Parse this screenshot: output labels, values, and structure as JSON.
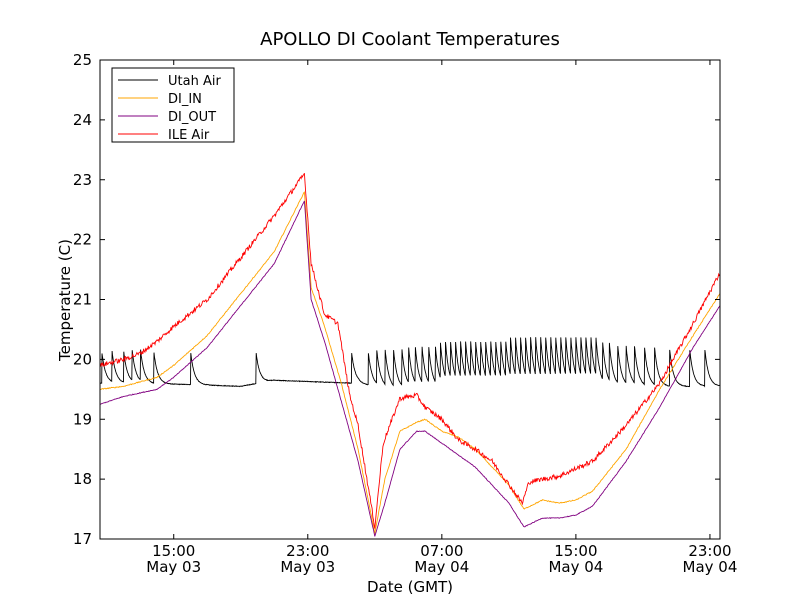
{
  "chart_data": {
    "type": "line",
    "title": "APOLLO DI Coolant Temperatures",
    "xlabel": "Date (GMT)",
    "ylabel": "Temperature (C)",
    "x_unit": "hours since May 03 00:00 GMT",
    "xlim": [
      10.6,
      47.6
    ],
    "ylim": [
      17,
      25
    ],
    "yticks": [
      17,
      18,
      19,
      20,
      21,
      22,
      23,
      24,
      25
    ],
    "xticks": [
      {
        "x": 15,
        "line1": "15:00",
        "line2": "May 03"
      },
      {
        "x": 23,
        "line1": "23:00",
        "line2": "May 03"
      },
      {
        "x": 31,
        "line1": "07:00",
        "line2": "May 04"
      },
      {
        "x": 39,
        "line1": "15:00",
        "line2": "May 04"
      },
      {
        "x": 47,
        "line1": "23:00",
        "line2": "May 04"
      }
    ],
    "legend_position": "top-left",
    "series": [
      {
        "name": "Utah Air",
        "color": "#000000",
        "baseline": [
          [
            10.6,
            19.6
          ],
          [
            12,
            19.6
          ],
          [
            16,
            19.58
          ],
          [
            19,
            19.55
          ],
          [
            21,
            19.65
          ],
          [
            24,
            19.62
          ],
          [
            26,
            19.6
          ],
          [
            28,
            19.5
          ],
          [
            47.6,
            19.55
          ]
        ],
        "spikes": [
          10.7,
          11.3,
          12.0,
          12.5,
          13.0,
          13.8,
          16.0,
          19.9,
          25.6,
          26.6,
          27.1,
          27.6,
          28.1,
          28.6,
          29.0,
          29.4,
          29.8,
          30.2,
          30.6,
          30.9,
          31.2,
          31.5,
          31.8,
          32.1,
          32.4,
          32.7,
          33.0,
          33.3,
          33.6,
          33.9,
          34.2,
          34.5,
          34.8,
          35.1,
          35.4,
          35.7,
          36.0,
          36.3,
          36.6,
          36.9,
          37.2,
          37.5,
          37.8,
          38.1,
          38.4,
          38.7,
          39.0,
          39.3,
          39.6,
          39.9,
          40.2,
          40.6,
          41.0,
          41.5,
          42.0,
          42.5,
          43.1,
          43.7,
          44.6,
          45.8,
          46.7
        ],
        "spike_peak": 20.15
      },
      {
        "name": "DI_IN",
        "color": "#ffa500",
        "points": [
          [
            10.6,
            19.5
          ],
          [
            12,
            19.55
          ],
          [
            14,
            19.7
          ],
          [
            15,
            19.9
          ],
          [
            17,
            20.4
          ],
          [
            19,
            21.1
          ],
          [
            21,
            21.8
          ],
          [
            22.8,
            22.8
          ],
          [
            23.2,
            21.2
          ],
          [
            24,
            20.55
          ],
          [
            25,
            19.6
          ],
          [
            26,
            18.5
          ],
          [
            27,
            17.1
          ],
          [
            27.6,
            18.0
          ],
          [
            28.5,
            18.8
          ],
          [
            29.5,
            18.95
          ],
          [
            30,
            19.0
          ],
          [
            31,
            18.8
          ],
          [
            32,
            18.7
          ],
          [
            33,
            18.5
          ],
          [
            34,
            18.2
          ],
          [
            35,
            17.9
          ],
          [
            35.9,
            17.5
          ],
          [
            37,
            17.65
          ],
          [
            38,
            17.6
          ],
          [
            39,
            17.65
          ],
          [
            40,
            17.8
          ],
          [
            42,
            18.5
          ],
          [
            44,
            19.5
          ],
          [
            46,
            20.4
          ],
          [
            47.6,
            21.1
          ]
        ]
      },
      {
        "name": "DI_OUT",
        "color": "#800080",
        "points": [
          [
            10.6,
            19.25
          ],
          [
            12,
            19.38
          ],
          [
            14,
            19.5
          ],
          [
            15,
            19.7
          ],
          [
            17,
            20.2
          ],
          [
            19,
            20.9
          ],
          [
            21,
            21.6
          ],
          [
            22.8,
            22.65
          ],
          [
            23.2,
            21.0
          ],
          [
            24,
            20.3
          ],
          [
            25,
            19.3
          ],
          [
            26,
            18.3
          ],
          [
            27,
            17.05
          ],
          [
            27.6,
            17.6
          ],
          [
            28.5,
            18.5
          ],
          [
            29.5,
            18.8
          ],
          [
            30,
            18.8
          ],
          [
            31,
            18.6
          ],
          [
            32,
            18.4
          ],
          [
            33,
            18.2
          ],
          [
            34,
            17.9
          ],
          [
            35,
            17.6
          ],
          [
            35.9,
            17.2
          ],
          [
            37,
            17.35
          ],
          [
            38,
            17.35
          ],
          [
            39,
            17.4
          ],
          [
            40,
            17.55
          ],
          [
            42,
            18.3
          ],
          [
            44,
            19.2
          ],
          [
            46,
            20.2
          ],
          [
            47.6,
            20.9
          ]
        ]
      },
      {
        "name": "ILE Air",
        "color": "#ff0000",
        "points": [
          [
            10.6,
            19.9
          ],
          [
            12,
            20.0
          ],
          [
            13,
            20.1
          ],
          [
            14,
            20.3
          ],
          [
            15,
            20.55
          ],
          [
            17,
            21.0
          ],
          [
            19,
            21.7
          ],
          [
            21,
            22.4
          ],
          [
            22.8,
            23.1
          ],
          [
            23.2,
            21.6
          ],
          [
            24,
            20.75
          ],
          [
            24.8,
            20.6
          ],
          [
            25.5,
            19.4
          ],
          [
            26,
            18.9
          ],
          [
            27,
            17.2
          ],
          [
            27.5,
            18.6
          ],
          [
            28.5,
            19.35
          ],
          [
            29.5,
            19.4
          ],
          [
            30,
            19.2
          ],
          [
            31,
            19.0
          ],
          [
            32,
            18.65
          ],
          [
            33,
            18.5
          ],
          [
            34,
            18.3
          ],
          [
            35.8,
            17.6
          ],
          [
            36.2,
            17.95
          ],
          [
            37,
            18.0
          ],
          [
            38,
            18.05
          ],
          [
            40,
            18.3
          ],
          [
            42,
            18.9
          ],
          [
            44,
            19.6
          ],
          [
            46,
            20.6
          ],
          [
            47.6,
            21.45
          ]
        ]
      }
    ]
  }
}
